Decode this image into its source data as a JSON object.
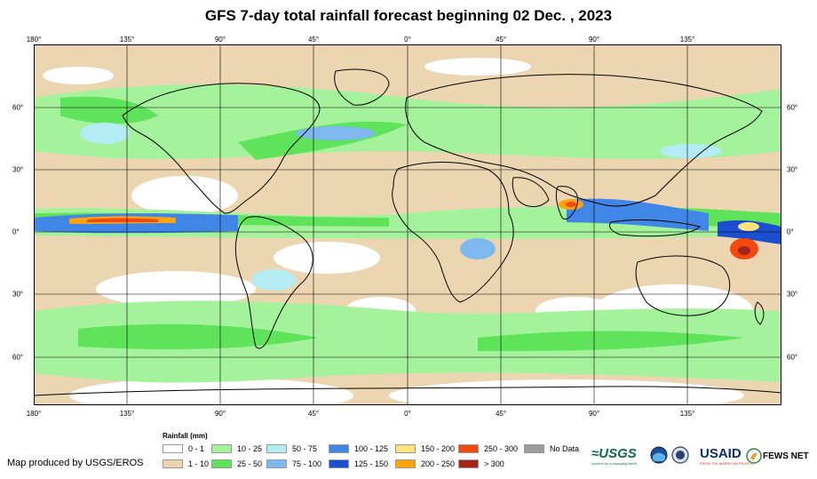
{
  "title": "GFS 7-day total rainfall forecast beginning 02 Dec. , 2023",
  "axes": {
    "lon_ticks": [
      "180°",
      "135°",
      "90°",
      "45°",
      "0°",
      "45°",
      "90°",
      "135°"
    ],
    "lat_ticks": [
      "60°",
      "30°",
      "0°",
      "30°",
      "60°"
    ]
  },
  "legend": {
    "title": "Rainfall (mm)",
    "items": [
      {
        "label": "0 - 1",
        "color": "#ffffff"
      },
      {
        "label": "1 - 10",
        "color": "#ecd6b2"
      },
      {
        "label": "10 - 25",
        "color": "#a5f29c"
      },
      {
        "label": "25 - 50",
        "color": "#5fe35a"
      },
      {
        "label": "50 - 75",
        "color": "#b4ecf4"
      },
      {
        "label": "75 - 100",
        "color": "#7fb8ee"
      },
      {
        "label": "100 - 125",
        "color": "#3f86e6"
      },
      {
        "label": "125 - 150",
        "color": "#1c4fd0"
      },
      {
        "label": "150 - 200",
        "color": "#ffe27a"
      },
      {
        "label": "200 - 250",
        "color": "#ffa30a"
      },
      {
        "label": "250 - 300",
        "color": "#f2490f"
      },
      {
        "label": "> 300",
        "color": "#a3231d"
      },
      {
        "label": "No Data",
        "color": "#9d9d9d"
      }
    ]
  },
  "footer": {
    "producer": "Map produced by USGS/EROS",
    "logos": {
      "usgs": "≈USGS",
      "usgs_tagline": "science for a changing world",
      "usaid": "USAID",
      "usaid_tagline": "FROM THE AMERICAN PEOPLE",
      "fews": "FEWS NET"
    }
  }
}
